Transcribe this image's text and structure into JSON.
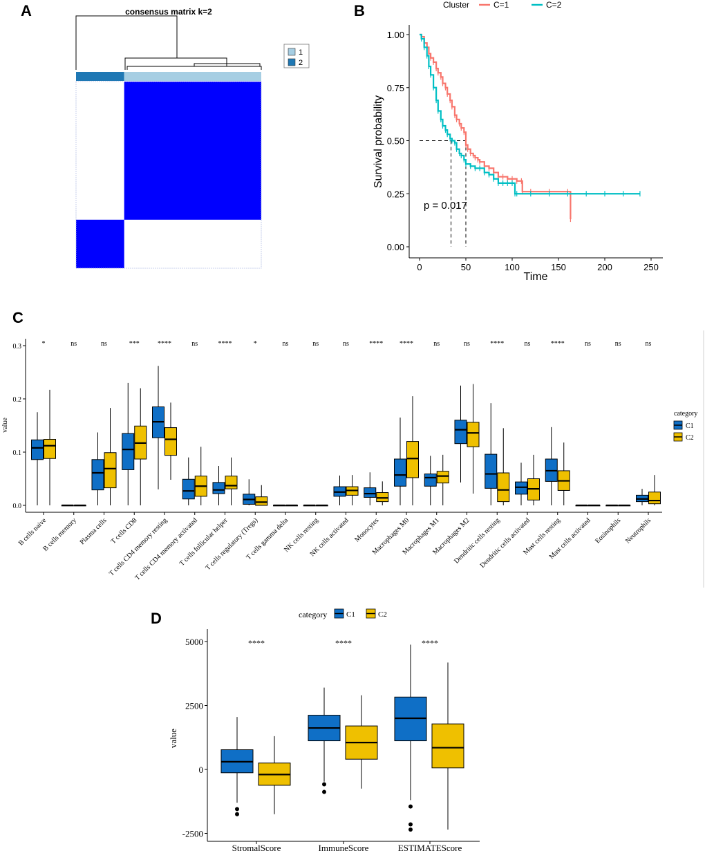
{
  "panels": {
    "A": "A",
    "B": "B",
    "C": "C",
    "D": "D"
  },
  "chart_data": [
    {
      "panel": "A",
      "type": "heatmap",
      "title": "consensus matrix k=2",
      "legend": {
        "items": [
          {
            "label": "1",
            "color": "#a6cee3"
          },
          {
            "label": "2",
            "color": "#1f78b4"
          }
        ],
        "placement": "right"
      },
      "groups": [
        {
          "cluster": 2,
          "fraction": 0.26
        },
        {
          "cluster": 1,
          "fraction": 0.74
        }
      ],
      "colors": {
        "high": "#0000ff",
        "low": "#ffffff"
      },
      "matrix": [
        [
          1,
          0
        ],
        [
          0,
          1
        ]
      ]
    },
    {
      "panel": "B",
      "type": "line",
      "legend_title": "Cluster",
      "series": [
        {
          "name": "C=1",
          "color": "#f8766d",
          "x": [
            0,
            2,
            5,
            8,
            10,
            12,
            15,
            18,
            20,
            23,
            25,
            28,
            30,
            33,
            35,
            38,
            40,
            43,
            45,
            48,
            50,
            52,
            55,
            58,
            60,
            63,
            65,
            70,
            75,
            80,
            85,
            90,
            95,
            100,
            105,
            110,
            111,
            120,
            140,
            160,
            163
          ],
          "y": [
            1.0,
            0.99,
            0.96,
            0.94,
            0.91,
            0.89,
            0.87,
            0.84,
            0.82,
            0.8,
            0.77,
            0.75,
            0.72,
            0.69,
            0.66,
            0.62,
            0.6,
            0.58,
            0.56,
            0.54,
            0.48,
            0.46,
            0.44,
            0.43,
            0.42,
            0.41,
            0.4,
            0.38,
            0.37,
            0.35,
            0.33,
            0.33,
            0.32,
            0.32,
            0.31,
            0.31,
            0.26,
            0.26,
            0.26,
            0.26,
            0.13
          ]
        },
        {
          "name": "C=2",
          "color": "#00bfc4",
          "x": [
            0,
            2,
            5,
            8,
            10,
            12,
            15,
            18,
            20,
            23,
            25,
            28,
            30,
            33,
            35,
            38,
            40,
            43,
            45,
            48,
            50,
            55,
            60,
            65,
            70,
            75,
            80,
            85,
            90,
            95,
            100,
            103,
            105,
            120,
            140,
            160,
            180,
            200,
            220,
            238
          ],
          "y": [
            1.0,
            0.98,
            0.94,
            0.9,
            0.85,
            0.81,
            0.75,
            0.69,
            0.64,
            0.6,
            0.57,
            0.55,
            0.53,
            0.51,
            0.5,
            0.49,
            0.46,
            0.44,
            0.43,
            0.41,
            0.39,
            0.38,
            0.37,
            0.37,
            0.35,
            0.34,
            0.32,
            0.3,
            0.3,
            0.3,
            0.3,
            0.25,
            0.25,
            0.25,
            0.25,
            0.25,
            0.25,
            0.25,
            0.25,
            0.25
          ]
        }
      ],
      "median": {
        "y": 0.5,
        "x": [
          34,
          50
        ]
      },
      "annotation": "p = 0.017",
      "xlabel": "Time",
      "ylabel": "Survival probability",
      "xticks": [
        "0",
        "50",
        "100",
        "150",
        "200",
        "250"
      ],
      "yticks": [
        "0.00",
        "0.25",
        "0.50",
        "0.75",
        "1.00"
      ],
      "xlim": [
        0,
        250
      ],
      "ylim": [
        0,
        1
      ]
    },
    {
      "panel": "C",
      "type": "box",
      "ylabel": "value",
      "ylim": [
        0,
        0.3
      ],
      "yticks": [
        "0.0",
        "0.1",
        "0.2",
        "0.3"
      ],
      "legend": {
        "title": "category",
        "items": [
          "C1",
          "C2"
        ],
        "placement": "right"
      },
      "colors": {
        "C1": "#0f6fc6",
        "C2": "#efc000"
      },
      "categories": [
        "B cells naive",
        "B cells memory",
        "Plasma cells",
        "T cells CD8",
        "T cells CD4 memory resting",
        "T cells CD4 memory activated",
        "T cells follicular helper",
        "T cells regulatory (Tregs)",
        "T cells gamma delta",
        "NK cells resting",
        "NK cells activated",
        "Monocytes",
        "Macrophages M0",
        "Macrophages M1",
        "Macrophages M2",
        "Dendritic cells resting",
        "Dendritic cells activated",
        "Mast cells resting",
        "Mast cells activated",
        "Eosinophils",
        "Neutrophils"
      ],
      "significance": [
        "*",
        "ns",
        "ns",
        "***",
        "****",
        "ns",
        "****",
        "*",
        "ns",
        "ns",
        "ns",
        "****",
        "****",
        "ns",
        "ns",
        "****",
        "ns",
        "****",
        "ns",
        "ns",
        "ns"
      ],
      "series": [
        {
          "name": "C1",
          "boxes": [
            [
              0,
              0.086,
              0.108,
              0.123,
              0.175
            ],
            [
              0,
              0,
              0,
              0,
              0
            ],
            [
              0,
              0.029,
              0.061,
              0.086,
              0.137
            ],
            [
              0,
              0.067,
              0.105,
              0.135,
              0.23
            ],
            [
              0.03,
              0.127,
              0.157,
              0.185,
              0.262
            ],
            [
              0,
              0.012,
              0.027,
              0.049,
              0.09
            ],
            [
              0,
              0.022,
              0.029,
              0.043,
              0.074
            ],
            [
              0,
              0.002,
              0.011,
              0.021,
              0.049
            ],
            [
              0,
              0,
              0,
              0,
              0
            ],
            [
              0,
              0,
              0,
              0,
              0
            ],
            [
              0,
              0.017,
              0.025,
              0.035,
              0.056
            ],
            [
              0,
              0.015,
              0.022,
              0.033,
              0.062
            ],
            [
              0,
              0.036,
              0.057,
              0.087,
              0.165
            ],
            [
              0,
              0.036,
              0.052,
              0.059,
              0.093
            ],
            [
              0.043,
              0.116,
              0.142,
              0.16,
              0.225
            ],
            [
              0,
              0.032,
              0.059,
              0.096,
              0.192
            ],
            [
              0,
              0.021,
              0.034,
              0.044,
              0.08
            ],
            [
              0,
              0.045,
              0.065,
              0.087,
              0.147
            ],
            [
              0,
              0,
              0,
              0,
              0
            ],
            [
              0,
              0,
              0,
              0,
              0
            ],
            [
              0,
              0.007,
              0.012,
              0.019,
              0.031
            ]
          ]
        },
        {
          "name": "C2",
          "boxes": [
            [
              0,
              0.088,
              0.112,
              0.124,
              0.217
            ],
            [
              0,
              0,
              0,
              0,
              0
            ],
            [
              0,
              0.033,
              0.069,
              0.099,
              0.183
            ],
            [
              0,
              0.087,
              0.117,
              0.149,
              0.22
            ],
            [
              0.048,
              0.094,
              0.124,
              0.146,
              0.193
            ],
            [
              0,
              0.017,
              0.036,
              0.055,
              0.11
            ],
            [
              0,
              0.031,
              0.037,
              0.055,
              0.09
            ],
            [
              0,
              0,
              0.006,
              0.016,
              0.038
            ],
            [
              0,
              0,
              0,
              0,
              0
            ],
            [
              0,
              0,
              0,
              0,
              0
            ],
            [
              0,
              0.019,
              0.028,
              0.035,
              0.057
            ],
            [
              0,
              0.007,
              0.014,
              0.024,
              0.045
            ],
            [
              0,
              0.052,
              0.088,
              0.12,
              0.205
            ],
            [
              0,
              0.042,
              0.055,
              0.064,
              0.095
            ],
            [
              0.022,
              0.11,
              0.136,
              0.156,
              0.228
            ],
            [
              0,
              0.007,
              0.029,
              0.061,
              0.145
            ],
            [
              0,
              0.01,
              0.031,
              0.05,
              0.095
            ],
            [
              0,
              0.028,
              0.046,
              0.065,
              0.118
            ],
            [
              0,
              0,
              0,
              0,
              0
            ],
            [
              0,
              0,
              0,
              0,
              0
            ],
            [
              0,
              0.003,
              0.009,
              0.025,
              0.057
            ]
          ]
        }
      ]
    },
    {
      "panel": "D",
      "type": "box",
      "ylabel": "value",
      "ylim": [
        -2600,
        5300
      ],
      "yticks": [
        "-2500",
        "0",
        "2500",
        "5000"
      ],
      "legend": {
        "title": "category",
        "items": [
          "C1",
          "C2"
        ],
        "placement": "top"
      },
      "colors": {
        "C1": "#0f6fc6",
        "C2": "#efc000"
      },
      "categories": [
        "StromalScore",
        "ImmuneScore",
        "ESTIMATEScore"
      ],
      "significance": [
        "****",
        "****",
        "****"
      ],
      "series": [
        {
          "name": "C1",
          "boxes": [
            [
              -1300,
              -130,
              300,
              770,
              2050
            ],
            [
              -480,
              1120,
              1620,
              2120,
              3200
            ],
            [
              -1200,
              1120,
              2000,
              2830,
              4880
            ]
          ]
        },
        {
          "name": "C2",
          "boxes": [
            [
              -1750,
              -620,
              -200,
              250,
              1300
            ],
            [
              -750,
              400,
              1050,
              1700,
              2900
            ],
            [
              -2350,
              60,
              850,
              1780,
              4180
            ]
          ]
        }
      ]
    }
  ]
}
